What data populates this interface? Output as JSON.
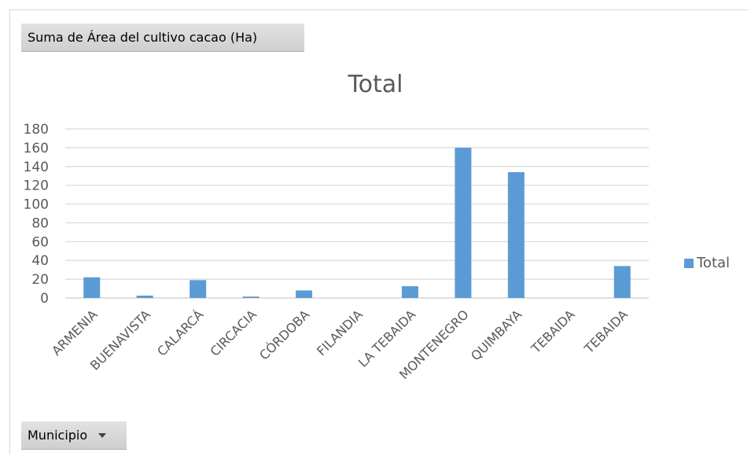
{
  "pivot": {
    "value_field_label": "Suma de Área del cultivo cacao (Ha)",
    "axis_field_label": "Municipio"
  },
  "colors": {
    "bar": "#5b9bd5",
    "grid": "#d9d9d9",
    "text": "#595959"
  },
  "chart_data": {
    "type": "bar",
    "title": "Total",
    "xlabel": "",
    "ylabel": "",
    "categories": [
      "ARMENIA",
      "BUENAVISTA",
      "CALARCÁ",
      "CIRCACIA",
      "CÓRDOBA",
      "FILANDIA",
      "LA TEBAIDA",
      "MONTENEGRO",
      "QUIMBAYA",
      "TEBAIDA",
      "TEBAIDA"
    ],
    "series": [
      {
        "name": "Total",
        "values": [
          22,
          2.5,
          19,
          1.5,
          8,
          0,
          12.5,
          160,
          134,
          0,
          34
        ]
      }
    ],
    "ylim": [
      0,
      180
    ],
    "yticks": [
      0,
      20,
      40,
      60,
      80,
      100,
      120,
      140,
      160,
      180
    ],
    "grid": true,
    "legend_position": "right"
  }
}
